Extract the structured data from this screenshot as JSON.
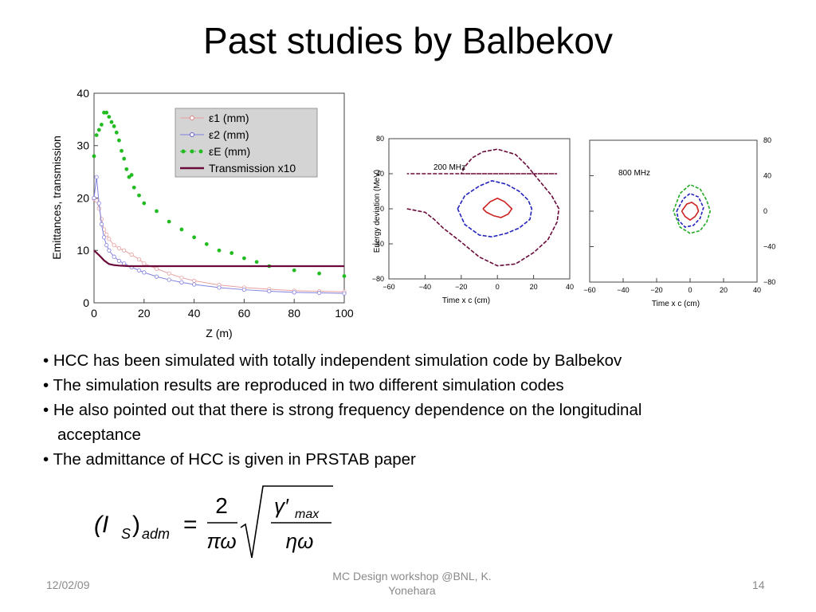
{
  "slide": {
    "title": "Past studies by Balbekov",
    "bullets": [
      "• HCC has been simulated with totally independent simulation code by Balbekov",
      "• The simulation results are reproduced in two different simulation codes",
      "• He also pointed out that there is strong frequency dependence on the longitudinal",
      "acceptance",
      "• The admittance of HCC is given in PRSTAB paper"
    ],
    "formula": {
      "lhs": "(I",
      "lhs_sub": "S",
      "lhs_close": ")",
      "lhs_sub2": "adm",
      "eq": "=",
      "num": "2",
      "den": "πω",
      "inner_num": "γ′",
      "inner_num_sub": "max",
      "inner_den": "ηω"
    },
    "footer": {
      "date": "12/02/09",
      "center_line1": "MC Design workshop @BNL, K.",
      "center_line2": "Yonehara",
      "page": "14"
    }
  },
  "chart_data": [
    {
      "type": "line",
      "xlabel": "Z (m)",
      "ylabel": "Emittances, transmission",
      "xlim": [
        0,
        100
      ],
      "ylim": [
        0,
        40
      ],
      "xticks": [
        "0",
        "20",
        "40",
        "60",
        "80",
        "100"
      ],
      "yticks": [
        "0",
        "10",
        "20",
        "30",
        "40"
      ],
      "legend_position": "top-right",
      "colors": {
        "eps1": "#e8a0a0",
        "eps2": "#8080e0",
        "epsE": "#22bb22",
        "trans": "#6a0a3a"
      },
      "legend": [
        "ε1 (mm)",
        "ε2 (mm)",
        "εE (mm)",
        "Transmission x10"
      ],
      "series": [
        {
          "name": "ε1 (mm)",
          "x": [
            0,
            1,
            2,
            3,
            4,
            5,
            6,
            8,
            10,
            12,
            15,
            18,
            20,
            25,
            30,
            35,
            40,
            50,
            60,
            70,
            80,
            90,
            100
          ],
          "y": [
            19.8,
            19.5,
            18,
            16,
            14,
            13,
            12.2,
            11,
            10.4,
            10,
            9.2,
            8.3,
            7.5,
            6.5,
            5.6,
            4.8,
            4.2,
            3.4,
            2.9,
            2.6,
            2.3,
            2.2,
            2.1
          ]
        },
        {
          "name": "ε2 (mm)",
          "x": [
            0,
            1,
            2,
            3,
            4,
            5,
            6,
            8,
            10,
            12,
            15,
            18,
            20,
            25,
            30,
            35,
            40,
            50,
            60,
            70,
            80,
            90,
            100
          ],
          "y": [
            20,
            24,
            19,
            15,
            12.5,
            11,
            10,
            8.8,
            8,
            7.5,
            6.8,
            6.2,
            5.8,
            5,
            4.4,
            3.9,
            3.5,
            2.9,
            2.5,
            2.2,
            2,
            1.9,
            1.8
          ]
        },
        {
          "name": "εE (mm)",
          "x": [
            0,
            1,
            2,
            3,
            4,
            5,
            6,
            7,
            8,
            9,
            10,
            11,
            12,
            13,
            14,
            15,
            16,
            18,
            20,
            25,
            30,
            35,
            40,
            45,
            50,
            55,
            60,
            65,
            70,
            80,
            90,
            100
          ],
          "y": [
            28,
            32,
            33,
            34,
            36.3,
            36.3,
            35.5,
            34.5,
            33.7,
            32.5,
            31,
            29,
            27.5,
            25.5,
            24,
            24.4,
            22,
            20.5,
            19,
            17.5,
            15.5,
            14,
            12.5,
            11.2,
            10,
            9.5,
            8.5,
            7.8,
            7,
            6.2,
            5.6,
            5.1
          ]
        },
        {
          "name": "Transmission x10",
          "x": [
            0,
            2,
            4,
            6,
            8,
            10,
            12,
            14,
            16,
            20,
            30,
            40,
            60,
            80,
            100
          ],
          "y": [
            10,
            9.1,
            8.1,
            7.4,
            7.2,
            7.1,
            7.05,
            7.0,
            7.0,
            7.0,
            7.0,
            7.0,
            7.0,
            7.0,
            7.0
          ]
        }
      ]
    },
    {
      "type": "line",
      "xlabel": "Time x c (cm)",
      "ylabel": "Energy deviation (MeV)",
      "annotation": "200 MHz",
      "xlim": [
        -60,
        40
      ],
      "ylim": [
        -80,
        80
      ],
      "xticks": [
        "−60",
        "−40",
        "−20",
        "0",
        "20",
        "40"
      ],
      "yticks": [
        "80",
        "40",
        "0",
        "−40",
        "−80"
      ],
      "colors": [
        "#6a0a3a",
        "#2222bb",
        "#cc2222"
      ],
      "series": [
        {
          "x": [
            -50,
            -40,
            -35,
            -30,
            -25,
            -20,
            -10,
            0,
            10,
            20,
            28,
            33,
            34,
            30,
            24,
            16,
            10,
            0,
            -8,
            -14,
            -18,
            -20,
            -20,
            -15,
            -8,
            0,
            12,
            22,
            30,
            33,
            30,
            20,
            10,
            0,
            -10,
            -20,
            -28,
            -35,
            -40,
            -45,
            -50
          ],
          "y": [
            0,
            -4,
            -12,
            -22,
            -30,
            -38,
            -55,
            -65,
            -63,
            -50,
            -35,
            -15,
            0,
            15,
            30,
            50,
            62,
            68,
            65,
            58,
            48,
            40,
            40,
            40,
            40,
            40,
            40,
            40,
            40,
            40,
            40,
            40,
            40,
            40,
            40,
            40,
            40,
            40,
            40,
            40,
            40
          ]
        },
        {
          "x": [
            -22,
            -18,
            -10,
            -3,
            5,
            12,
            17,
            19,
            18,
            12,
            5,
            -3,
            -10,
            -18,
            -22
          ],
          "y": [
            0,
            15,
            26,
            32,
            28,
            20,
            10,
            0,
            -12,
            -22,
            -28,
            -32,
            -30,
            -18,
            0
          ]
        },
        {
          "x": [
            -8,
            -4,
            0,
            4,
            8,
            6,
            2,
            -2,
            -6,
            -8
          ],
          "y": [
            0,
            8,
            12,
            8,
            0,
            -6,
            -10,
            -8,
            -4,
            0
          ]
        }
      ]
    },
    {
      "type": "line",
      "xlabel": "Time x c (cm)",
      "annotation": "800 MHz",
      "xlim": [
        -60,
        40
      ],
      "ylim": [
        -80,
        80
      ],
      "xticks": [
        "−60",
        "−40",
        "−20",
        "0",
        "20",
        "40"
      ],
      "yticks": [
        "80",
        "40",
        "0",
        "−40",
        "−80"
      ],
      "colors": [
        "#22aa22",
        "#2222bb",
        "#cc2222",
        "#6a0a3a"
      ],
      "series": [
        {
          "x": [
            -10,
            -6,
            0,
            6,
            10,
            12,
            10,
            6,
            0,
            -6,
            -10
          ],
          "y": [
            0,
            20,
            30,
            25,
            12,
            0,
            -12,
            -22,
            -25,
            -18,
            0
          ]
        },
        {
          "x": [
            -8,
            -4,
            0,
            5,
            8,
            6,
            2,
            -3,
            -7,
            -8
          ],
          "y": [
            0,
            14,
            20,
            16,
            4,
            -8,
            -16,
            -18,
            -10,
            0
          ]
        },
        {
          "x": [
            -5,
            -2,
            1,
            4,
            5,
            3,
            0,
            -3,
            -5
          ],
          "y": [
            0,
            8,
            10,
            6,
            0,
            -6,
            -10,
            -6,
            0
          ]
        }
      ]
    }
  ]
}
